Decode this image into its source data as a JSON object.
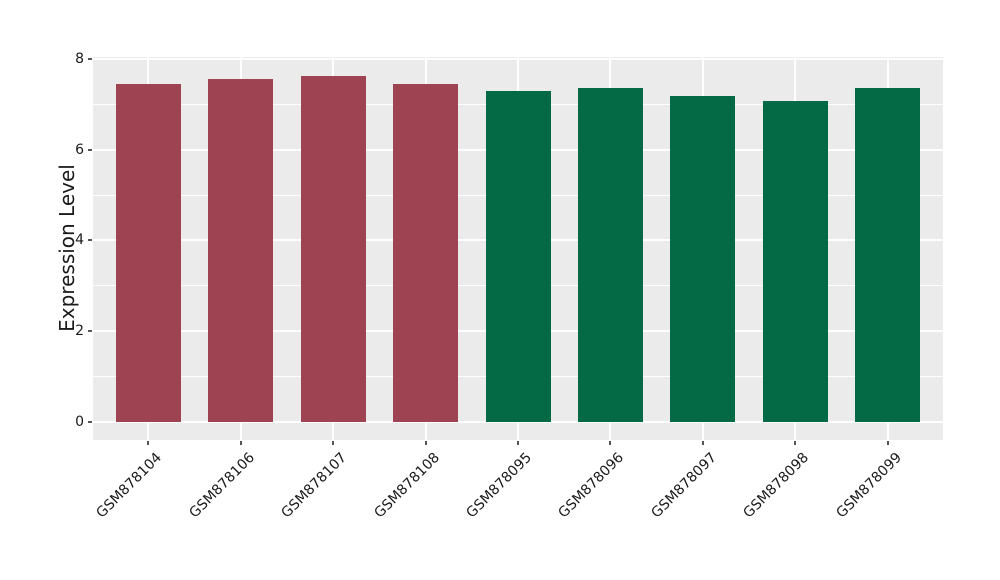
{
  "chart_data": {
    "type": "bar",
    "title": "",
    "xlabel": "",
    "ylabel": "Expression Level",
    "categories": [
      "GSM878104",
      "GSM878106",
      "GSM878107",
      "GSM878108",
      "GSM878095",
      "GSM878096",
      "GSM878097",
      "GSM878098",
      "GSM878099"
    ],
    "values": [
      7.45,
      7.55,
      7.63,
      7.45,
      7.3,
      7.35,
      7.18,
      7.08,
      7.35
    ],
    "bar_colors": [
      "#9E4352",
      "#9E4352",
      "#9E4352",
      "#9E4352",
      "#046A46",
      "#046A46",
      "#046A46",
      "#046A46",
      "#046A46"
    ],
    "color_groups": [
      {
        "color": "#9E4352",
        "categories": [
          "GSM878104",
          "GSM878106",
          "GSM878107",
          "GSM878108"
        ]
      },
      {
        "color": "#046A46",
        "categories": [
          "GSM878095",
          "GSM878096",
          "GSM878097",
          "GSM878098",
          "GSM878099"
        ]
      }
    ],
    "yticks": [
      0,
      2,
      4,
      6,
      8
    ],
    "yticks_minor": [
      1,
      3,
      5,
      7
    ],
    "ylim": [
      -0.4,
      8.05
    ],
    "xtick_rotation_deg": 45,
    "grid": true,
    "legend": "none",
    "panel_bg": "#EBEBEB",
    "grid_color": "#FFFFFF",
    "figure_bg": "#FFFFFF",
    "tick_color": "#555555",
    "text_color": "#1a1a1a"
  }
}
